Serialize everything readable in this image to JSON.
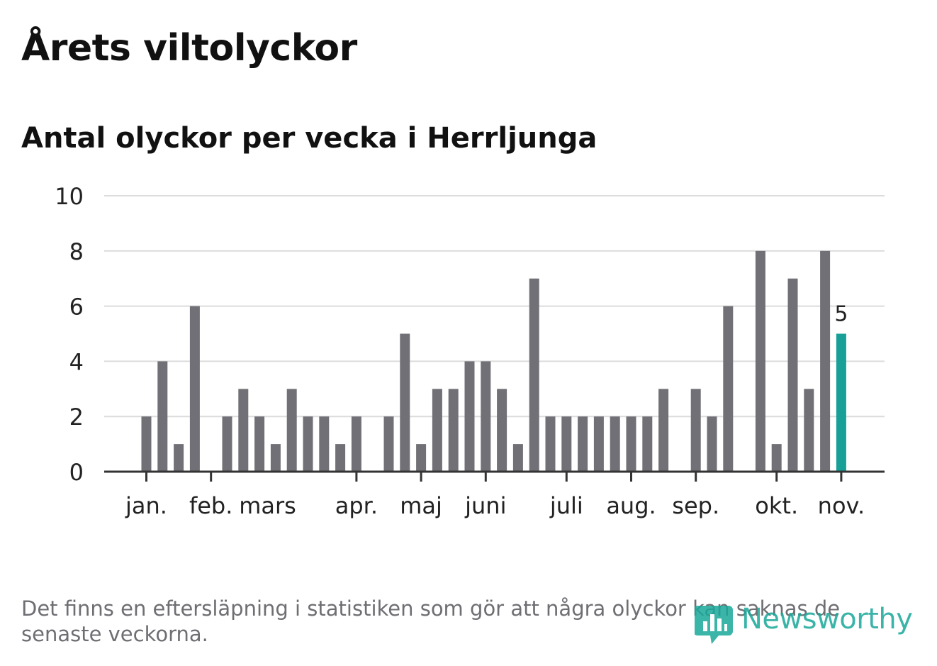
{
  "header": {
    "title": "Årets viltolyckor",
    "subtitle": "Antal olyckor per vecka i Herrljunga"
  },
  "footnote": "Det finns en eftersläpning i statistiken som gör att några olyckor kan saknas de senaste veckorna.",
  "logo": {
    "text": "Newsworthy",
    "icon": "bar-chart-speech-bubble-icon"
  },
  "colors": {
    "bar": "#717076",
    "highlight": "#16a097",
    "grid": "#dcdcdc",
    "axis": "#333333"
  },
  "chart_data": {
    "type": "bar",
    "title": "Antal olyckor per vecka i Herrljunga",
    "ylim": [
      0,
      10
    ],
    "yticks": [
      0,
      2,
      4,
      6,
      8,
      10
    ],
    "grid": true,
    "weeks": [
      1,
      2,
      3,
      4,
      5,
      6,
      7,
      8,
      9,
      10,
      11,
      12,
      13,
      14,
      15,
      16,
      17,
      18,
      19,
      20,
      21,
      22,
      23,
      24,
      25,
      26,
      27,
      28,
      29,
      30,
      31,
      32,
      33,
      34,
      35,
      36,
      37,
      38,
      39,
      40,
      41,
      42,
      43,
      44
    ],
    "values": [
      2,
      4,
      1,
      6,
      0,
      2,
      3,
      2,
      1,
      3,
      2,
      2,
      1,
      2,
      0,
      2,
      5,
      1,
      3,
      3,
      4,
      4,
      3,
      1,
      7,
      2,
      2,
      2,
      2,
      2,
      2,
      2,
      3,
      0,
      3,
      2,
      6,
      0,
      8,
      1,
      7,
      3,
      8,
      5
    ],
    "month_labels": [
      {
        "label": "jan.",
        "week": 1
      },
      {
        "label": "feb.",
        "week": 5
      },
      {
        "label": "mars",
        "week": 8.5
      },
      {
        "label": "apr.",
        "week": 14
      },
      {
        "label": "maj",
        "week": 18
      },
      {
        "label": "juni",
        "week": 22
      },
      {
        "label": "juli",
        "week": 27
      },
      {
        "label": "aug.",
        "week": 31
      },
      {
        "label": "sep.",
        "week": 35
      },
      {
        "label": "okt.",
        "week": 40
      },
      {
        "label": "nov.",
        "week": 44
      }
    ],
    "month_ticks": [
      1,
      5,
      14,
      18,
      22,
      27,
      31,
      35,
      40,
      44
    ],
    "highlight": {
      "week": 44,
      "value": 5,
      "label": "5"
    }
  }
}
